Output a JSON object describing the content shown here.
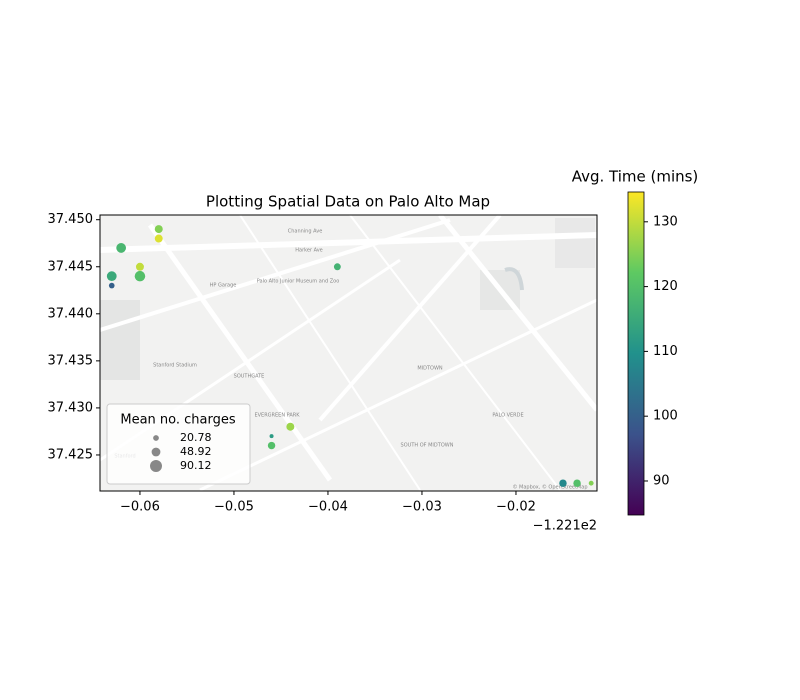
{
  "chart_data": {
    "type": "scatter",
    "title": "Plotting Spatial Data on Palo Alto Map",
    "x_offset_label": "−1.221e2",
    "xlim": [
      -0.06425,
      -0.01138
    ],
    "ylim": [
      37.42117,
      37.4505
    ],
    "xticks": [
      {
        "value": -0.06,
        "label": "−0.06"
      },
      {
        "value": -0.05,
        "label": "−0.05"
      },
      {
        "value": -0.04,
        "label": "−0.04"
      },
      {
        "value": -0.03,
        "label": "−0.03"
      },
      {
        "value": -0.02,
        "label": "−0.02"
      }
    ],
    "yticks": [
      {
        "value": 37.425,
        "label": "37.425"
      },
      {
        "value": 37.43,
        "label": "37.430"
      },
      {
        "value": 37.435,
        "label": "37.435"
      },
      {
        "value": 37.44,
        "label": "37.440"
      },
      {
        "value": 37.445,
        "label": "37.445"
      },
      {
        "value": 37.45,
        "label": "37.450"
      }
    ],
    "series": [
      {
        "x": [
          -0.063,
          -0.063,
          -0.062,
          -0.058,
          -0.058,
          -0.06,
          -0.06,
          -0.039,
          -0.044,
          -0.046,
          -0.046,
          -0.015,
          -0.0135,
          -0.012
        ],
        "y": [
          37.444,
          37.443,
          37.447,
          37.449,
          37.448,
          37.445,
          37.444,
          37.445,
          37.428,
          37.426,
          37.427,
          37.422,
          37.422,
          37.422
        ],
        "sizes": [
          60,
          20,
          60,
          40,
          40,
          40,
          70,
          30,
          40,
          35,
          10,
          35,
          35,
          15
        ],
        "colors": [
          115,
          100,
          118,
          125,
          132,
          130,
          120,
          117,
          127,
          120,
          112,
          108,
          120,
          125
        ]
      }
    ],
    "size_legend_title": "Mean no. charges",
    "size_legend": [
      20.78,
      48.92,
      90.12
    ],
    "colorbar_label": "Avg. Time (mins)",
    "clim": [
      84.75,
      134.6
    ],
    "cticks": [
      90,
      100,
      110,
      120,
      130
    ],
    "colormap": "viridis",
    "map_labels": [
      "Channing Ave",
      "Harker Ave",
      "Palo Alto Junior Museum and Zoo",
      "HP Garage",
      "Stanford Stadium",
      "SOUTHGATE",
      "EVERGREEN PARK",
      "MIDTOWN",
      "SOUTH OF MIDTOWN",
      "PALO VERDE",
      "Stanford",
      "© Mapbox, © OpenStreetMap"
    ]
  }
}
